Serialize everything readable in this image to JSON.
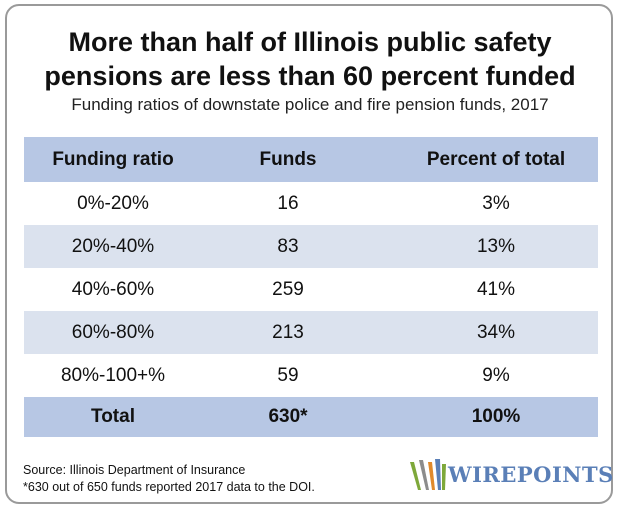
{
  "chart_data": {
    "type": "table",
    "title_line1": "More than half of Illinois public safety",
    "title_line2": "pensions are less than 60 percent funded",
    "subtitle": "Funding ratios of downstate police and fire pension funds, 2017",
    "columns": [
      "Funding ratio",
      "Funds",
      "Percent of total"
    ],
    "rows": [
      [
        "0%-20%",
        "16",
        "3%"
      ],
      [
        "20%-40%",
        "83",
        "13%"
      ],
      [
        "40%-60%",
        "259",
        "41%"
      ],
      [
        "60%-80%",
        "213",
        "34%"
      ],
      [
        "80%-100+%",
        "59",
        "9%"
      ]
    ],
    "total": [
      "Total",
      "630*",
      "100%"
    ]
  },
  "footer": {
    "source": "Source: Illinois Department of Insurance",
    "note": "*630 out of 650 funds reported 2017 data to the DOI."
  },
  "logo": {
    "text": "WIREPOINTS",
    "icon": "wirepoints-w-logo-icon",
    "colors": {
      "green": "#7ea83a",
      "orange": "#e08a2c",
      "blue": "#5a7fb7",
      "gray": "#8c8c8c"
    }
  },
  "colors": {
    "header_bg": "#b7c7e4",
    "stripe_bg": "#dbe2ee",
    "border": "#9a9a9a"
  }
}
